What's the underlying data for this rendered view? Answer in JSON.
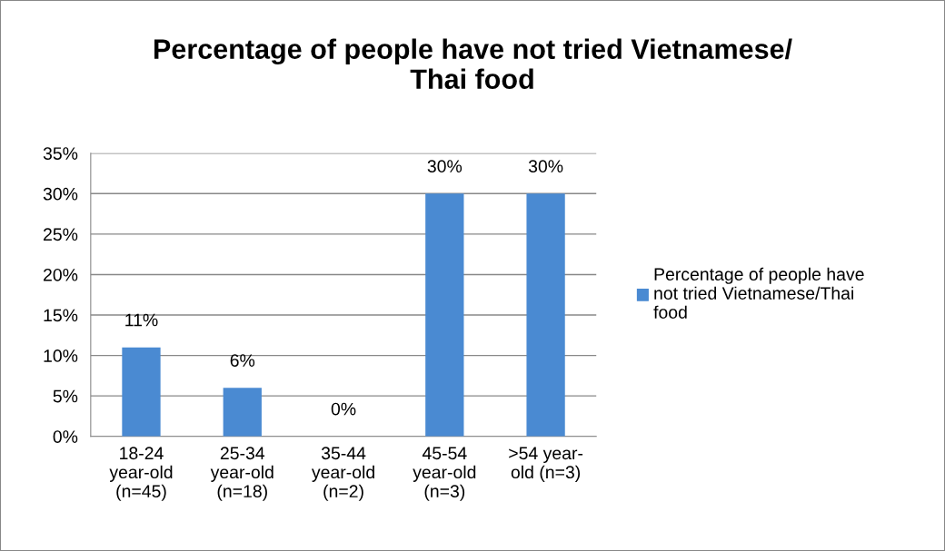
{
  "chart_data": {
    "type": "bar",
    "title": "Percentage of people have not tried Vietnamese/\nThai food",
    "categories": [
      "18-24\nyear-old\n(n=45)",
      "25-34\nyear-old\n(n=18)",
      "35-44\nyear-old\n(n=2)",
      "45-54\nyear-old\n(n=3)",
      ">54 year-\nold (n=3)"
    ],
    "series": [
      {
        "name": "Percentage of people have\nnot tried Vietnamese/Thai\nfood",
        "color": "#4a8ad2",
        "values": [
          11,
          6,
          0,
          30,
          30
        ],
        "value_labels": [
          "11%",
          "6%",
          "0%",
          "30%",
          "30%"
        ]
      }
    ],
    "ylim": [
      0,
      35
    ],
    "yticks": [
      {
        "value": 0,
        "label": "0%"
      },
      {
        "value": 5,
        "label": "5%"
      },
      {
        "value": 10,
        "label": "10%"
      },
      {
        "value": 15,
        "label": "15%"
      },
      {
        "value": 20,
        "label": "20%"
      },
      {
        "value": 25,
        "label": "25%"
      },
      {
        "value": 30,
        "label": "30%"
      },
      {
        "value": 35,
        "label": "35%"
      }
    ],
    "grid": "y",
    "legend": "right"
  }
}
